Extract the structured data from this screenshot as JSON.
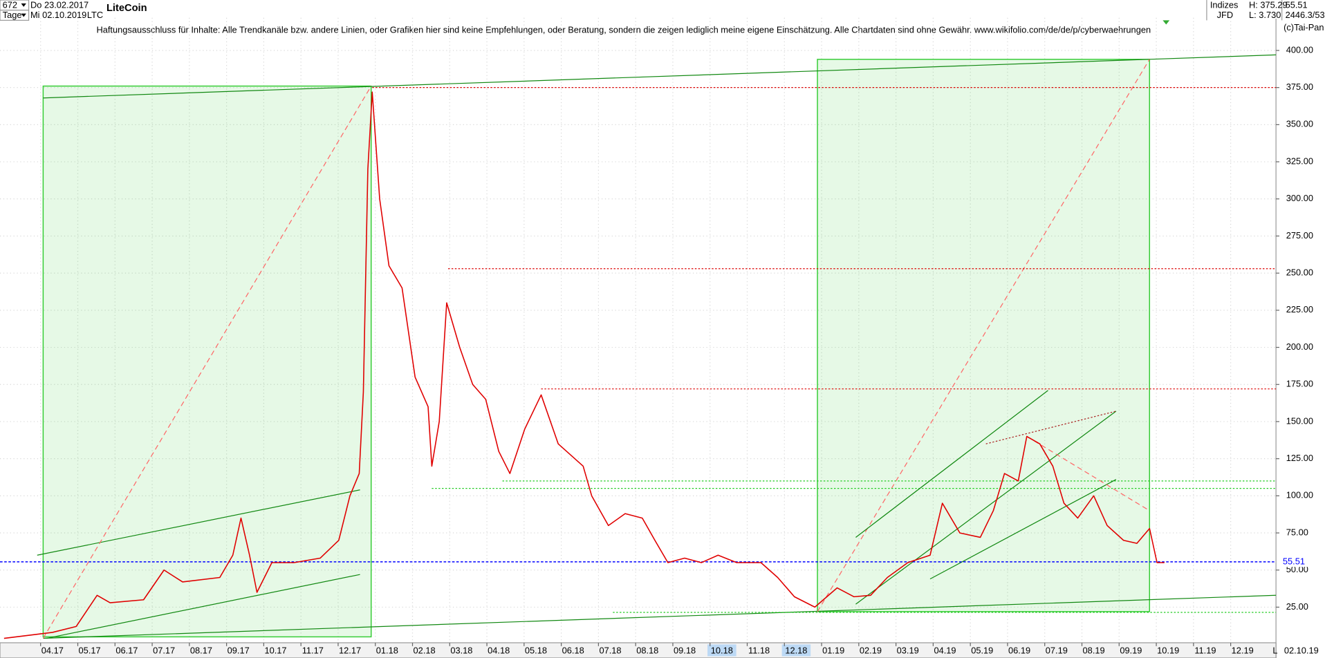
{
  "header": {
    "bars": "672",
    "start": "Do 23.02.2017",
    "unit": "Tage",
    "end": "Mi 02.10.2019",
    "symbol": "LTC",
    "name": "LiteCoin",
    "market": "Indizes",
    "high": "H: 375.29",
    "last": "55.51",
    "source": "JFD",
    "low": "L: 3.730",
    "volume": "2446.3/53",
    "copyright": "(c)Tai-Pan",
    "disclaimer": "Haftungsausschluss für Inhalte: Alle Trendkanäle bzw. andere Linien, oder Grafiken hier sind keine Empfehlungen, oder Beratung, sondern die zeigen lediglich meine eigene Einschätzung. Alle Chartdaten sind ohne Gewähr.  www.wikifolio.com/de/de/p/cyberwaehrungen",
    "date_end": "02.10.19",
    "scale": "L"
  },
  "chart_data": {
    "type": "line",
    "x": [
      -1.3,
      0,
      0.64,
      1.2,
      1.55,
      2.45,
      3.0,
      3.5,
      4.5,
      4.85,
      5.07,
      5.3,
      5.5,
      5.9,
      6.5,
      7.2,
      7.7,
      8.0,
      8.25,
      8.36,
      8.48,
      8.6,
      8.8,
      9.05,
      9.4,
      9.75,
      10.1,
      10.2,
      10.4,
      10.6,
      10.95,
      11.3,
      11.65,
      12.0,
      12.3,
      12.7,
      13.14,
      13.6,
      14.27,
      14.5,
      14.95,
      15.4,
      15.86,
      16.2,
      16.55,
      17.0,
      17.45,
      17.9,
      18.4,
      19.05,
      19.5,
      19.95,
      20.5,
      21.1,
      21.55,
      22.0,
      22.45,
      23.0,
      23.6,
      23.93,
      24.4,
      24.95,
      25.3,
      25.6,
      25.97,
      26.2,
      26.55,
      26.9,
      27.2,
      27.57,
      28.0,
      28.36,
      28.8,
      29.16,
      29.5,
      29.7,
      29.9
    ],
    "series": [
      {
        "color": "#e00000",
        "values": [
          4,
          8,
          12,
          33,
          28,
          30,
          50,
          42,
          45,
          60,
          85,
          60,
          35,
          55,
          55,
          58,
          70,
          100,
          115,
          170,
          320,
          372,
          300,
          255,
          240,
          180,
          160,
          120,
          150,
          230,
          200,
          175,
          165,
          130,
          115,
          145,
          168,
          135,
          120,
          100,
          80,
          88,
          85,
          70,
          55,
          58,
          55,
          60,
          55,
          55,
          45,
          32,
          25,
          38,
          32,
          33,
          45,
          55,
          60,
          95,
          75,
          72,
          90,
          115,
          110,
          140,
          135,
          120,
          95,
          85,
          100,
          80,
          70,
          68,
          78,
          55,
          55
        ]
      }
    ],
    "xlim": [
      -1.41,
      32.9
    ],
    "ylim": [
      5,
      422
    ],
    "grid": true,
    "xticks": [
      {
        "value": 0,
        "label": "04.17"
      },
      {
        "value": 1,
        "label": "05.17"
      },
      {
        "value": 2,
        "label": "06.17"
      },
      {
        "value": 3,
        "label": "07.17"
      },
      {
        "value": 4,
        "label": "08.17"
      },
      {
        "value": 5,
        "label": "09.17"
      },
      {
        "value": 6,
        "label": "10.17"
      },
      {
        "value": 7,
        "label": "11.17"
      },
      {
        "value": 8,
        "label": "12.17"
      },
      {
        "value": 9,
        "label": "01.18"
      },
      {
        "value": 10,
        "label": "02.18"
      },
      {
        "value": 11,
        "label": "03.18"
      },
      {
        "value": 12,
        "label": "04.18"
      },
      {
        "value": 13,
        "label": "05.18"
      },
      {
        "value": 14,
        "label": "06.18"
      },
      {
        "value": 15,
        "label": "07.18"
      },
      {
        "value": 16,
        "label": "08.18"
      },
      {
        "value": 17,
        "label": "09.18"
      },
      {
        "value": 18,
        "label": "10.18",
        "highlight": true
      },
      {
        "value": 19,
        "label": "11.18"
      },
      {
        "value": 20,
        "label": "12.18",
        "highlight": true
      },
      {
        "value": 21,
        "label": "01.19"
      },
      {
        "value": 22,
        "label": "02.19"
      },
      {
        "value": 23,
        "label": "03.19"
      },
      {
        "value": 24,
        "label": "04.19"
      },
      {
        "value": 25,
        "label": "05.19"
      },
      {
        "value": 26,
        "label": "06.19"
      },
      {
        "value": 27,
        "label": "07.19"
      },
      {
        "value": 28,
        "label": "08.19"
      },
      {
        "value": 29,
        "label": "09.19"
      },
      {
        "value": 30,
        "label": "10.19"
      },
      {
        "value": 31,
        "label": "11.19"
      },
      {
        "value": 32,
        "label": "12.19"
      }
    ],
    "yticks": [
      {
        "value": 25,
        "label": "25.00"
      },
      {
        "value": 50,
        "label": "50.00"
      },
      {
        "value": 75,
        "label": "75.00"
      },
      {
        "value": 100,
        "label": "100.00"
      },
      {
        "value": 125,
        "label": "125.00"
      },
      {
        "value": 150,
        "label": "150.00"
      },
      {
        "value": 175,
        "label": "175.00"
      },
      {
        "value": 200,
        "label": "200.00"
      },
      {
        "value": 225,
        "label": "225.00"
      },
      {
        "value": 250,
        "label": "250.00"
      },
      {
        "value": 275,
        "label": "275.00"
      },
      {
        "value": 300,
        "label": "300.00"
      },
      {
        "value": 325,
        "label": "325.00"
      },
      {
        "value": 350,
        "label": "350.00"
      },
      {
        "value": 375,
        "label": "375.00"
      },
      {
        "value": 400,
        "label": "400.00"
      }
    ],
    "last_value": 55.51,
    "last_color": "#0000ff",
    "overlays": [
      {
        "kind": "box",
        "x": [
          -0.25,
          8.57
        ],
        "y": [
          5,
          376
        ],
        "color": "#33cc33"
      },
      {
        "kind": "box",
        "x": [
          20.57,
          29.5
        ],
        "y": [
          22,
          394
        ],
        "color": "#33cc33"
      },
      {
        "kind": "line",
        "x": [
          -0.25,
          32.9
        ],
        "y": [
          368,
          397
        ],
        "color": "#118811"
      },
      {
        "kind": "line",
        "x": [
          -0.25,
          32.9
        ],
        "y": [
          4,
          33
        ],
        "color": "#118811"
      },
      {
        "kind": "line",
        "x": [
          -0.41,
          8.27
        ],
        "y": [
          60,
          104
        ],
        "color": "#118811"
      },
      {
        "kind": "line",
        "x": [
          -0.16,
          8.27
        ],
        "y": [
          4,
          47
        ],
        "color": "#118811"
      },
      {
        "kind": "dashed",
        "x": [
          -0.25,
          8.57
        ],
        "y": [
          4,
          376
        ],
        "color": "#ff6666"
      },
      {
        "kind": "dashed",
        "x": [
          20.57,
          29.5
        ],
        "y": [
          22,
          394
        ],
        "color": "#ff6666"
      },
      {
        "kind": "dotted",
        "x": [
          8.6,
          32.9
        ],
        "y": [
          375,
          375
        ],
        "color": "#dd0000"
      },
      {
        "kind": "dotted",
        "x": [
          10.64,
          32.9
        ],
        "y": [
          253,
          253
        ],
        "color": "#dd0000"
      },
      {
        "kind": "dotted",
        "x": [
          13.14,
          32.9
        ],
        "y": [
          172,
          172
        ],
        "color": "#dd0000"
      },
      {
        "kind": "dotted",
        "x": [
          10.2,
          32.9
        ],
        "y": [
          105,
          105
        ],
        "color": "#22cc22"
      },
      {
        "kind": "dotted",
        "x": [
          12.1,
          32.9
        ],
        "y": [
          110,
          110
        ],
        "color": "#22cc22"
      },
      {
        "kind": "dotted",
        "x": [
          15.07,
          32.9
        ],
        "y": [
          21.5,
          21.5
        ],
        "color": "#22cc22"
      },
      {
        "kind": "line",
        "x": [
          21.6,
          26.77
        ],
        "y": [
          72,
          171
        ],
        "color": "#118811"
      },
      {
        "kind": "line",
        "x": [
          23.6,
          28.6
        ],
        "y": [
          44,
          111
        ],
        "color": "#118811"
      },
      {
        "kind": "line",
        "x": [
          21.6,
          28.6
        ],
        "y": [
          27,
          157
        ],
        "color": "#118811"
      },
      {
        "kind": "dotted",
        "x": [
          25.1,
          28.6
        ],
        "y": [
          135,
          157
        ],
        "color": "#aa2222"
      },
      {
        "kind": "dashed",
        "x": [
          26.2,
          29.5
        ],
        "y": [
          140,
          90
        ],
        "color": "#ff6666"
      }
    ]
  }
}
